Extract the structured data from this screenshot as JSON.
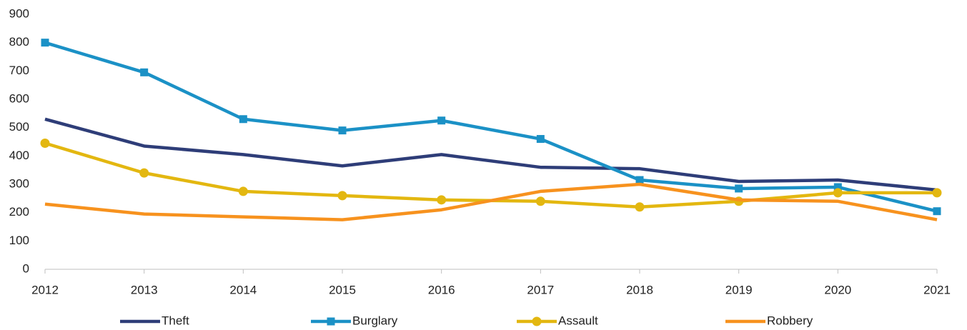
{
  "chart_data": {
    "type": "line",
    "categories": [
      "2012",
      "2013",
      "2014",
      "2015",
      "2016",
      "2017",
      "2018",
      "2019",
      "2020",
      "2021"
    ],
    "series": [
      {
        "name": "Theft",
        "color": "#2e3d78",
        "marker": "none",
        "values": [
          530,
          435,
          405,
          365,
          405,
          360,
          355,
          310,
          315,
          280
        ]
      },
      {
        "name": "Burglary",
        "color": "#1b91c6",
        "marker": "square",
        "values": [
          800,
          695,
          530,
          490,
          525,
          460,
          315,
          285,
          290,
          205
        ]
      },
      {
        "name": "Assault",
        "color": "#e3b710",
        "marker": "circle",
        "values": [
          445,
          340,
          275,
          260,
          245,
          240,
          220,
          240,
          270,
          270
        ]
      },
      {
        "name": "Robbery",
        "color": "#f7921e",
        "marker": "none",
        "values": [
          230,
          195,
          185,
          175,
          210,
          275,
          300,
          245,
          240,
          175
        ]
      }
    ],
    "ylim": [
      0,
      900
    ],
    "yticks": [
      0,
      100,
      200,
      300,
      400,
      500,
      600,
      700,
      800,
      900
    ],
    "grid": false,
    "legend": "bottom"
  }
}
